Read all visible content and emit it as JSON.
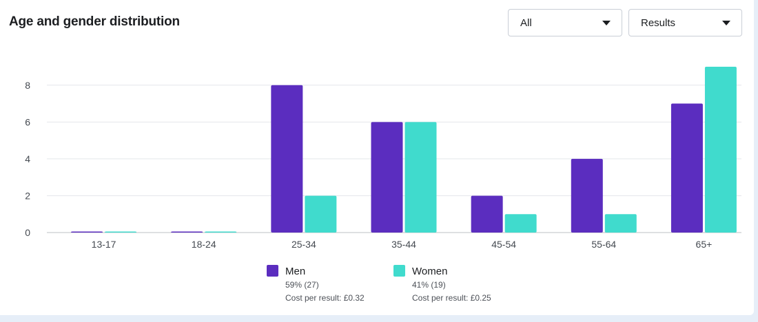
{
  "header": {
    "title": "Age and gender distribution",
    "filter_all": "All",
    "filter_results": "Results"
  },
  "legend": [
    {
      "name": "Men",
      "share": "59% (27)",
      "cost": "Cost per result: £0.32",
      "color": "#5b2dbf"
    },
    {
      "name": "Women",
      "share": "41% (19)",
      "cost": "Cost per result: £0.25",
      "color": "#40dbcd"
    }
  ],
  "chart_data": {
    "type": "bar",
    "categories": [
      "13-17",
      "18-24",
      "25-34",
      "35-44",
      "45-54",
      "55-64",
      "65+"
    ],
    "series": [
      {
        "name": "Men",
        "values": [
          0,
          0,
          8,
          6,
          2,
          4,
          7
        ],
        "color": "#5b2dbf"
      },
      {
        "name": "Women",
        "values": [
          0,
          0,
          2,
          6,
          1,
          1,
          9
        ],
        "color": "#40dbcd"
      }
    ],
    "ylim": [
      0,
      9
    ],
    "yticks": [
      0,
      2,
      4,
      6,
      8
    ],
    "grid": true,
    "legend_position": "bottom"
  }
}
